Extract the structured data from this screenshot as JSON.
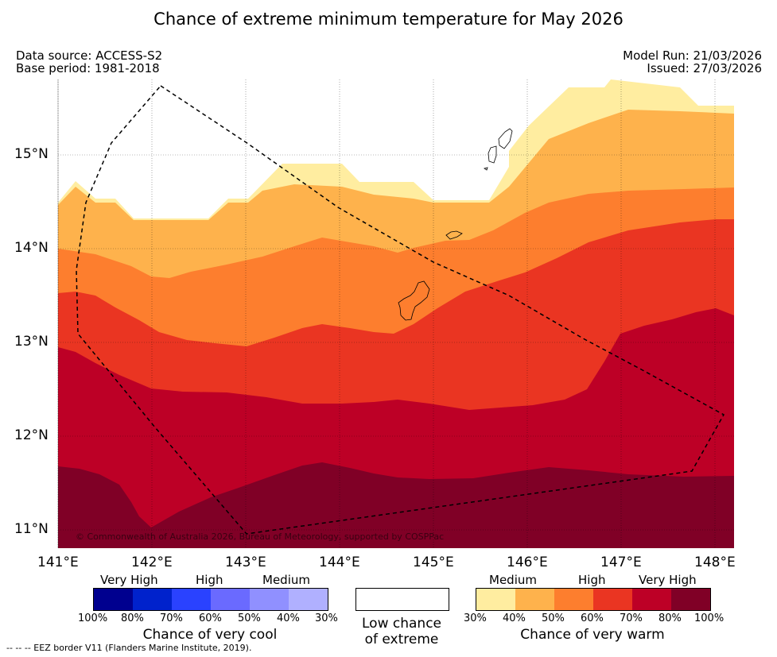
{
  "title": "Chance of extreme minimum temperature for May 2026",
  "meta": {
    "data_source": "Data source: ACCESS-S2",
    "base_period": "Base period: 1981-2018",
    "model_run": "Model Run: 21/03/2026",
    "issued": "Issued: 27/03/2026"
  },
  "axes": {
    "lat_labels": [
      "15°N",
      "14°N",
      "13°N",
      "12°N",
      "11°N"
    ],
    "lon_labels": [
      "141°E",
      "142°E",
      "143°E",
      "144°E",
      "145°E",
      "146°E",
      "147°E",
      "148°E"
    ]
  },
  "copyright": "© Commonwealth of Australia 2026, Bureau of Meteorology, supported by COSPPac",
  "footnote": "--  --  -- EEZ border V11 (Flanders Marine Institute, 2019).",
  "cool_legend": {
    "levels": [
      "Very High",
      "High",
      "Medium"
    ],
    "colors": [
      "#00008f",
      "#0022cc",
      "#2a42ff",
      "#6a6aff",
      "#9090ff",
      "#b0b0ff"
    ],
    "ticks": [
      "100%",
      "80%",
      "70%",
      "60%",
      "50%",
      "40%",
      "30%"
    ],
    "caption": "Chance of very cool"
  },
  "low_legend": {
    "line1": "Low chance",
    "line2": "of extreme"
  },
  "warm_legend": {
    "levels": [
      "Medium",
      "High",
      "Very High"
    ],
    "colors": [
      "#ffeda0",
      "#feb24c",
      "#fd7e2e",
      "#ea3522",
      "#bd0026",
      "#800026"
    ],
    "ticks": [
      "30%",
      "40%",
      "50%",
      "60%",
      "70%",
      "80%",
      "100%"
    ],
    "caption": "Chance of very warm"
  },
  "map_layers": [
    {
      "name": "30-40%",
      "color": "#ffeda0"
    },
    {
      "name": "40-50%",
      "color": "#feb24c"
    },
    {
      "name": "50-60%",
      "color": "#fd7e2e"
    },
    {
      "name": "60-70%",
      "color": "#ea3522"
    },
    {
      "name": "70-80%",
      "color": "#bd0026"
    },
    {
      "name": "80-100%",
      "color": "#800026"
    }
  ]
}
